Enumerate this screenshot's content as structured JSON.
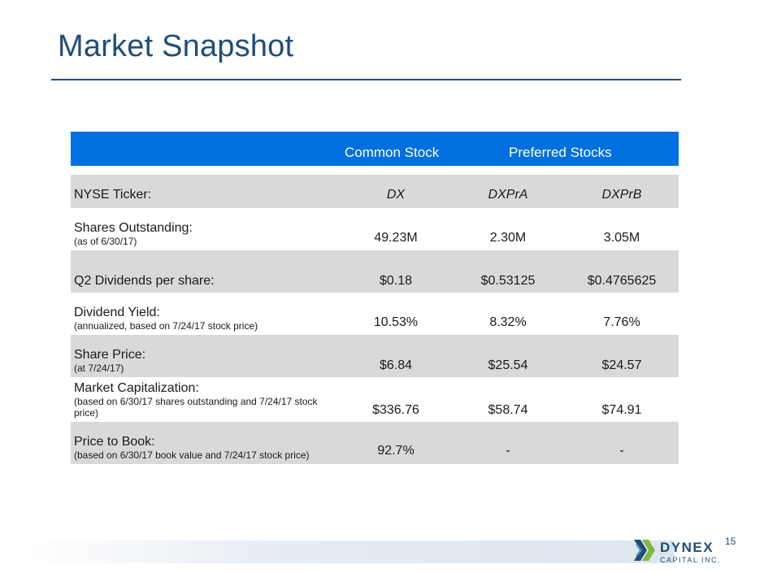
{
  "title": "Market Snapshot",
  "table": {
    "group_headers": {
      "common": "Common Stock",
      "preferred": "Preferred Stocks"
    },
    "rows": [
      {
        "label": "NYSE Ticker:",
        "sub": "",
        "values": [
          "DX",
          "DXPrA",
          "DXPrB"
        ]
      },
      {
        "label": "Shares Outstanding:",
        "sub": "(as of 6/30/17)",
        "values": [
          "49.23M",
          "2.30M",
          "3.05M"
        ]
      },
      {
        "label": "Q2 Dividends per share:",
        "sub": "",
        "values": [
          "$0.18",
          "$0.53125",
          "$0.4765625"
        ]
      },
      {
        "label": "Dividend Yield:",
        "sub": "(annualized, based on 7/24/17 stock price)",
        "values": [
          "10.53%",
          "8.32%",
          "7.76%"
        ]
      },
      {
        "label": "Share Price:",
        "sub": "(at 7/24/17)",
        "values": [
          "$6.84",
          "$25.54",
          "$24.57"
        ]
      },
      {
        "label": "Market Capitalization:",
        "sub": "(based on 6/30/17 shares outstanding and 7/24/17 stock price)",
        "values": [
          "$336.76",
          "$58.74",
          "$74.91"
        ]
      },
      {
        "label": "Price to Book:",
        "sub": "(based on 6/30/17 book value and 7/24/17 stock price)",
        "values": [
          "92.7%",
          "-",
          "-"
        ]
      }
    ]
  },
  "footer": {
    "page_number": "15",
    "logo_name": "DYNEX",
    "logo_sub": "CAPITAL INC.",
    "logo_icon": "dynex-chevron-logo-icon"
  },
  "colors": {
    "title": "#1f4e79",
    "header": "#0070e0",
    "row_gray": "#d9d9d9"
  }
}
